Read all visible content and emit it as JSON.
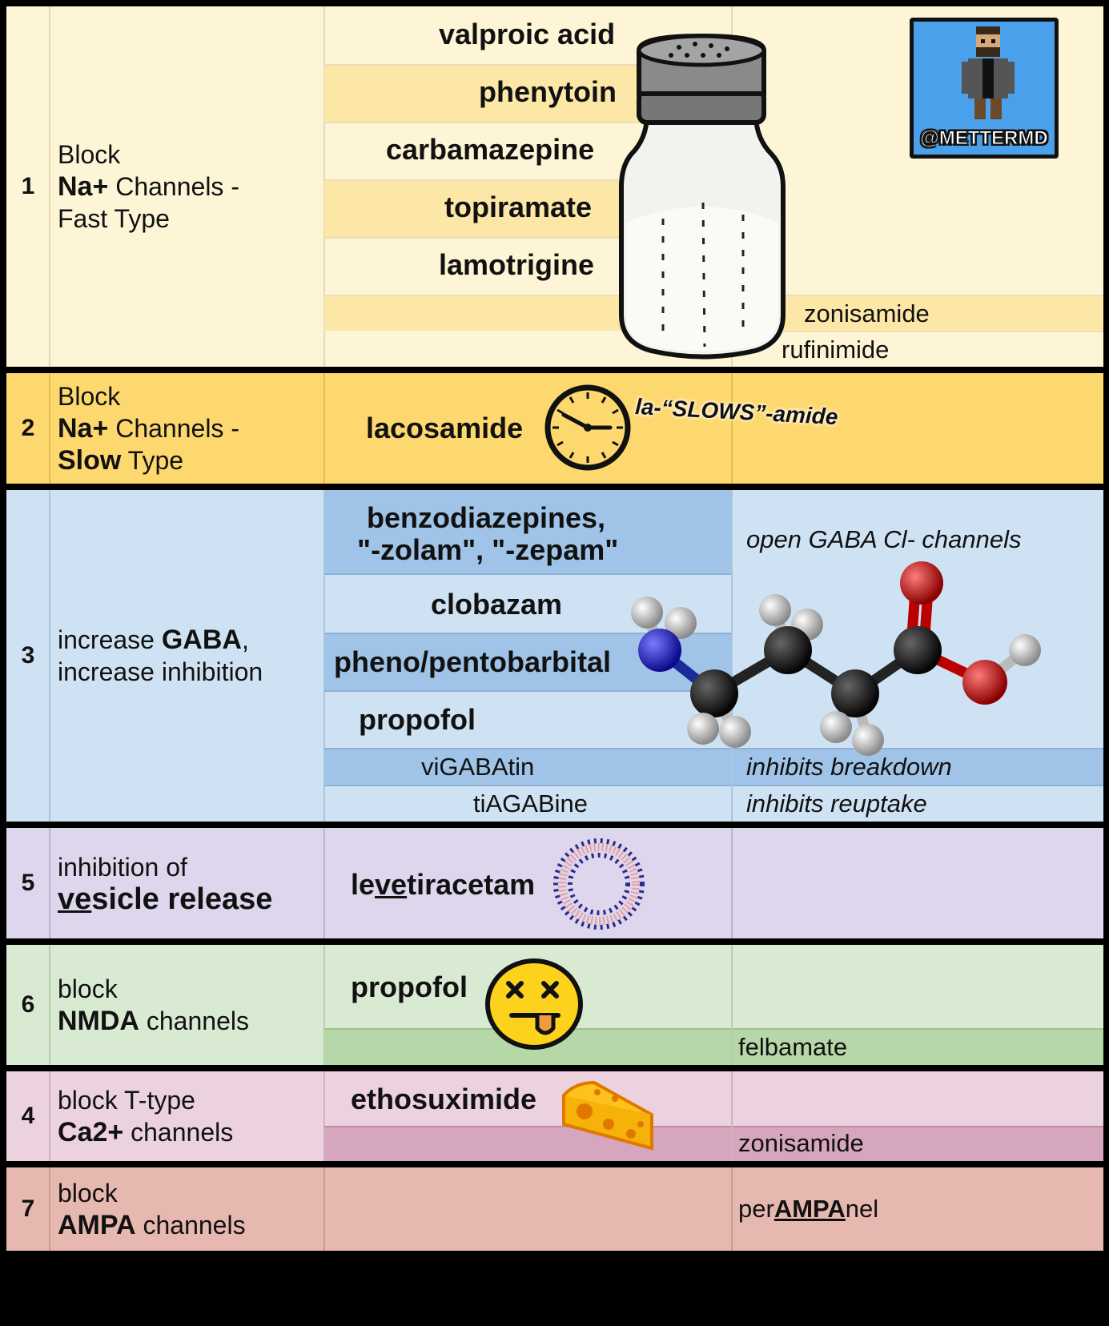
{
  "badge": {
    "handle": "@METTERMD"
  },
  "rows": [
    {
      "num": "1",
      "mech": {
        "l1": "Block",
        "l2b": "Na+",
        "l2": " Channels -",
        "l3": "Fast Type"
      },
      "drugs": [
        "valproic acid",
        "phenytoin",
        "carbamazepine",
        "topiramate",
        "lamotrigine"
      ],
      "extras": [
        "zonisamide",
        "rufinimide"
      ]
    },
    {
      "num": "2",
      "mech": {
        "l1": "Block",
        "l2b": "Na+",
        "l2": " Channels -",
        "l3b": "Slow",
        "l3": " Type"
      },
      "drug": "lacosamide",
      "note": "la-“SLOWS”-amide"
    },
    {
      "num": "3",
      "mech": {
        "l1": "increase ",
        "l1b": "GABA",
        "l1c": ",",
        "l2": "increase inhibition"
      },
      "drugs": [
        "benzodiazepines,",
        "\"-zolam\", \"-zepam\"",
        "clobazam",
        "pheno/pentobarbital",
        "propofol"
      ],
      "note": "open GABA Cl- channels",
      "extras": [
        {
          "drug_pre": "vi",
          "drug_caps": "GABA",
          "drug_post": "tin",
          "note": "inhibits breakdown"
        },
        {
          "drug_pre": "ti",
          "drug_caps": "AGAB",
          "drug_post": "ine",
          "note": "inhibits reuptake"
        }
      ]
    },
    {
      "num": "5",
      "mech": {
        "l1": "inhibition of",
        "l2u": "ve",
        "l2": "sicle release"
      },
      "drug": {
        "pre": "le",
        "u": "ve",
        "post": "tiracetam"
      }
    },
    {
      "num": "6",
      "mech": {
        "l1": "block",
        "l2b": "NMDA",
        "l2": " channels"
      },
      "drug": "propofol",
      "extra": "felbamate"
    },
    {
      "num": "4",
      "mech": {
        "l1": "block T-type",
        "l2b": "Ca2+",
        "l2": " channels"
      },
      "drug": "ethosuximide",
      "extra": "zonisamide"
    },
    {
      "num": "7",
      "mech": {
        "l1": "block",
        "l2b": "AMPA",
        "l2": " channels"
      },
      "extra": {
        "pre": "per",
        "u": "AMPA",
        "post": "nel"
      }
    }
  ],
  "colors": {
    "row1": "#fef5d7",
    "row1_band": "#fde7a7",
    "row2": "#fdd86e",
    "row3": "#cfe2f3",
    "row3_band": "#a0c4e8",
    "row5": "#ddd6ec",
    "row6": "#d9ead3",
    "row6_band": "#b6d7a8",
    "row4": "#ebd2de",
    "row4_band": "#d5a6bd",
    "row7": "#e6b8af"
  }
}
